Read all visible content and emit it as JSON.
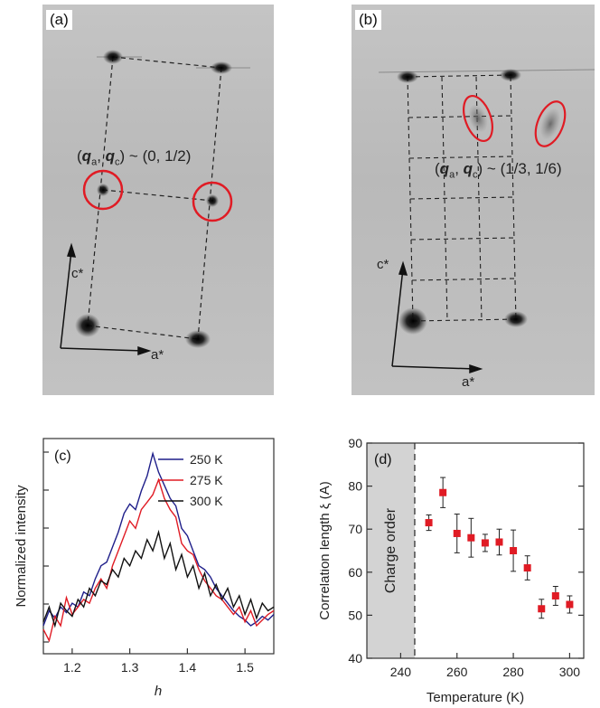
{
  "panel_a": {
    "label": "(a)",
    "annotation_prefix": "(",
    "annotation_qa": "q",
    "annotation_sub_a": "a",
    "annotation_sep": ", ",
    "annotation_qc": "q",
    "annotation_sub_c": "c",
    "annotation_suffix": ") ~ (0, 1/2)",
    "axis_c": "c*",
    "axis_a": "a*"
  },
  "panel_b": {
    "label": "(b)",
    "annotation_prefix": "(",
    "annotation_qa": "q",
    "annotation_sub_a": "a",
    "annotation_sep": ", ",
    "annotation_qc": "q",
    "annotation_sub_c": "c",
    "annotation_suffix": ") ~ (1/3, 1/6)",
    "axis_c": "c*",
    "axis_a": "a*"
  },
  "colors": {
    "series_250": "#1f1f8a",
    "series_275": "#e01b24",
    "series_300": "#111111",
    "marker": "#e01b24",
    "highlight_circle": "#e01b24",
    "shade": "#d3d3d3"
  },
  "chart_data": [
    {
      "type": "line",
      "panel_label": "(c)",
      "xlabel": "h",
      "ylabel": "Normalized intensity",
      "xlim": [
        1.15,
        1.55
      ],
      "x_ticks": [
        "1.2",
        "1.3",
        "1.4",
        "1.5"
      ],
      "legend_placement": "top-right",
      "series": [
        {
          "name": "250 K",
          "x": [
            1.15,
            1.16,
            1.17,
            1.18,
            1.19,
            1.2,
            1.21,
            1.22,
            1.23,
            1.24,
            1.25,
            1.26,
            1.27,
            1.28,
            1.29,
            1.3,
            1.31,
            1.32,
            1.33,
            1.34,
            1.35,
            1.36,
            1.37,
            1.38,
            1.39,
            1.4,
            1.41,
            1.42,
            1.43,
            1.44,
            1.45,
            1.46,
            1.47,
            1.48,
            1.49,
            1.5,
            1.51,
            1.52,
            1.53,
            1.54,
            1.55
          ],
          "y": [
            0.3,
            0.38,
            0.34,
            0.4,
            0.37,
            0.42,
            0.4,
            0.48,
            0.46,
            0.55,
            0.62,
            0.64,
            0.72,
            0.8,
            0.9,
            0.95,
            0.92,
            1.02,
            1.1,
            1.22,
            1.12,
            1.05,
            0.98,
            0.94,
            0.82,
            0.78,
            0.7,
            0.62,
            0.6,
            0.56,
            0.5,
            0.46,
            0.42,
            0.38,
            0.35,
            0.33,
            0.3,
            0.32,
            0.35,
            0.33,
            0.36
          ]
        },
        {
          "name": "275 K",
          "x": [
            1.15,
            1.16,
            1.17,
            1.18,
            1.19,
            1.2,
            1.21,
            1.22,
            1.23,
            1.24,
            1.25,
            1.26,
            1.27,
            1.28,
            1.29,
            1.3,
            1.31,
            1.32,
            1.33,
            1.34,
            1.35,
            1.36,
            1.37,
            1.38,
            1.39,
            1.4,
            1.41,
            1.42,
            1.43,
            1.44,
            1.45,
            1.46,
            1.47,
            1.48,
            1.49,
            1.5,
            1.51,
            1.52,
            1.53,
            1.54,
            1.55
          ],
          "y": [
            0.28,
            0.22,
            0.35,
            0.3,
            0.45,
            0.36,
            0.4,
            0.44,
            0.42,
            0.5,
            0.55,
            0.5,
            0.62,
            0.7,
            0.78,
            0.86,
            0.82,
            0.92,
            0.96,
            1.0,
            1.08,
            0.98,
            0.92,
            0.88,
            0.74,
            0.7,
            0.68,
            0.6,
            0.54,
            0.5,
            0.46,
            0.44,
            0.4,
            0.36,
            0.4,
            0.32,
            0.38,
            0.3,
            0.33,
            0.36,
            0.38
          ]
        },
        {
          "name": "300 K",
          "x": [
            1.15,
            1.16,
            1.17,
            1.18,
            1.19,
            1.2,
            1.21,
            1.22,
            1.23,
            1.24,
            1.25,
            1.26,
            1.27,
            1.28,
            1.29,
            1.3,
            1.31,
            1.32,
            1.33,
            1.34,
            1.35,
            1.36,
            1.37,
            1.38,
            1.39,
            1.4,
            1.41,
            1.42,
            1.43,
            1.44,
            1.45,
            1.46,
            1.47,
            1.48,
            1.49,
            1.5,
            1.51,
            1.52,
            1.53,
            1.54,
            1.55
          ],
          "y": [
            0.32,
            0.4,
            0.3,
            0.42,
            0.38,
            0.35,
            0.44,
            0.4,
            0.5,
            0.46,
            0.54,
            0.52,
            0.6,
            0.56,
            0.66,
            0.62,
            0.7,
            0.66,
            0.76,
            0.7,
            0.8,
            0.66,
            0.74,
            0.6,
            0.68,
            0.56,
            0.62,
            0.5,
            0.58,
            0.46,
            0.52,
            0.44,
            0.5,
            0.4,
            0.46,
            0.36,
            0.44,
            0.34,
            0.42,
            0.38,
            0.4
          ]
        }
      ]
    },
    {
      "type": "scatter",
      "panel_label": "(d)",
      "xlabel": "Temperature (K)",
      "ylabel": "Correlation length ξ (Å)",
      "xlim": [
        228,
        305
      ],
      "ylim": [
        40,
        90
      ],
      "x_ticks": [
        "240",
        "260",
        "280",
        "300"
      ],
      "y_ticks": [
        "40",
        "50",
        "60",
        "70",
        "80",
        "90"
      ],
      "shaded_region_label": "Charge order",
      "shaded_region_x": [
        228,
        245
      ],
      "points": [
        {
          "x": 250,
          "y": 71.5,
          "err": 1.8
        },
        {
          "x": 255,
          "y": 78.5,
          "err": 3.5
        },
        {
          "x": 260,
          "y": 69.0,
          "err": 4.5
        },
        {
          "x": 265,
          "y": 68.0,
          "err": 4.5
        },
        {
          "x": 270,
          "y": 66.8,
          "err": 2.0
        },
        {
          "x": 275,
          "y": 67.0,
          "err": 3.0
        },
        {
          "x": 280,
          "y": 65.0,
          "err": 4.8
        },
        {
          "x": 285,
          "y": 61.0,
          "err": 2.8
        },
        {
          "x": 290,
          "y": 51.5,
          "err": 2.2
        },
        {
          "x": 295,
          "y": 54.5,
          "err": 2.2
        },
        {
          "x": 300,
          "y": 52.5,
          "err": 2.0
        }
      ]
    }
  ]
}
